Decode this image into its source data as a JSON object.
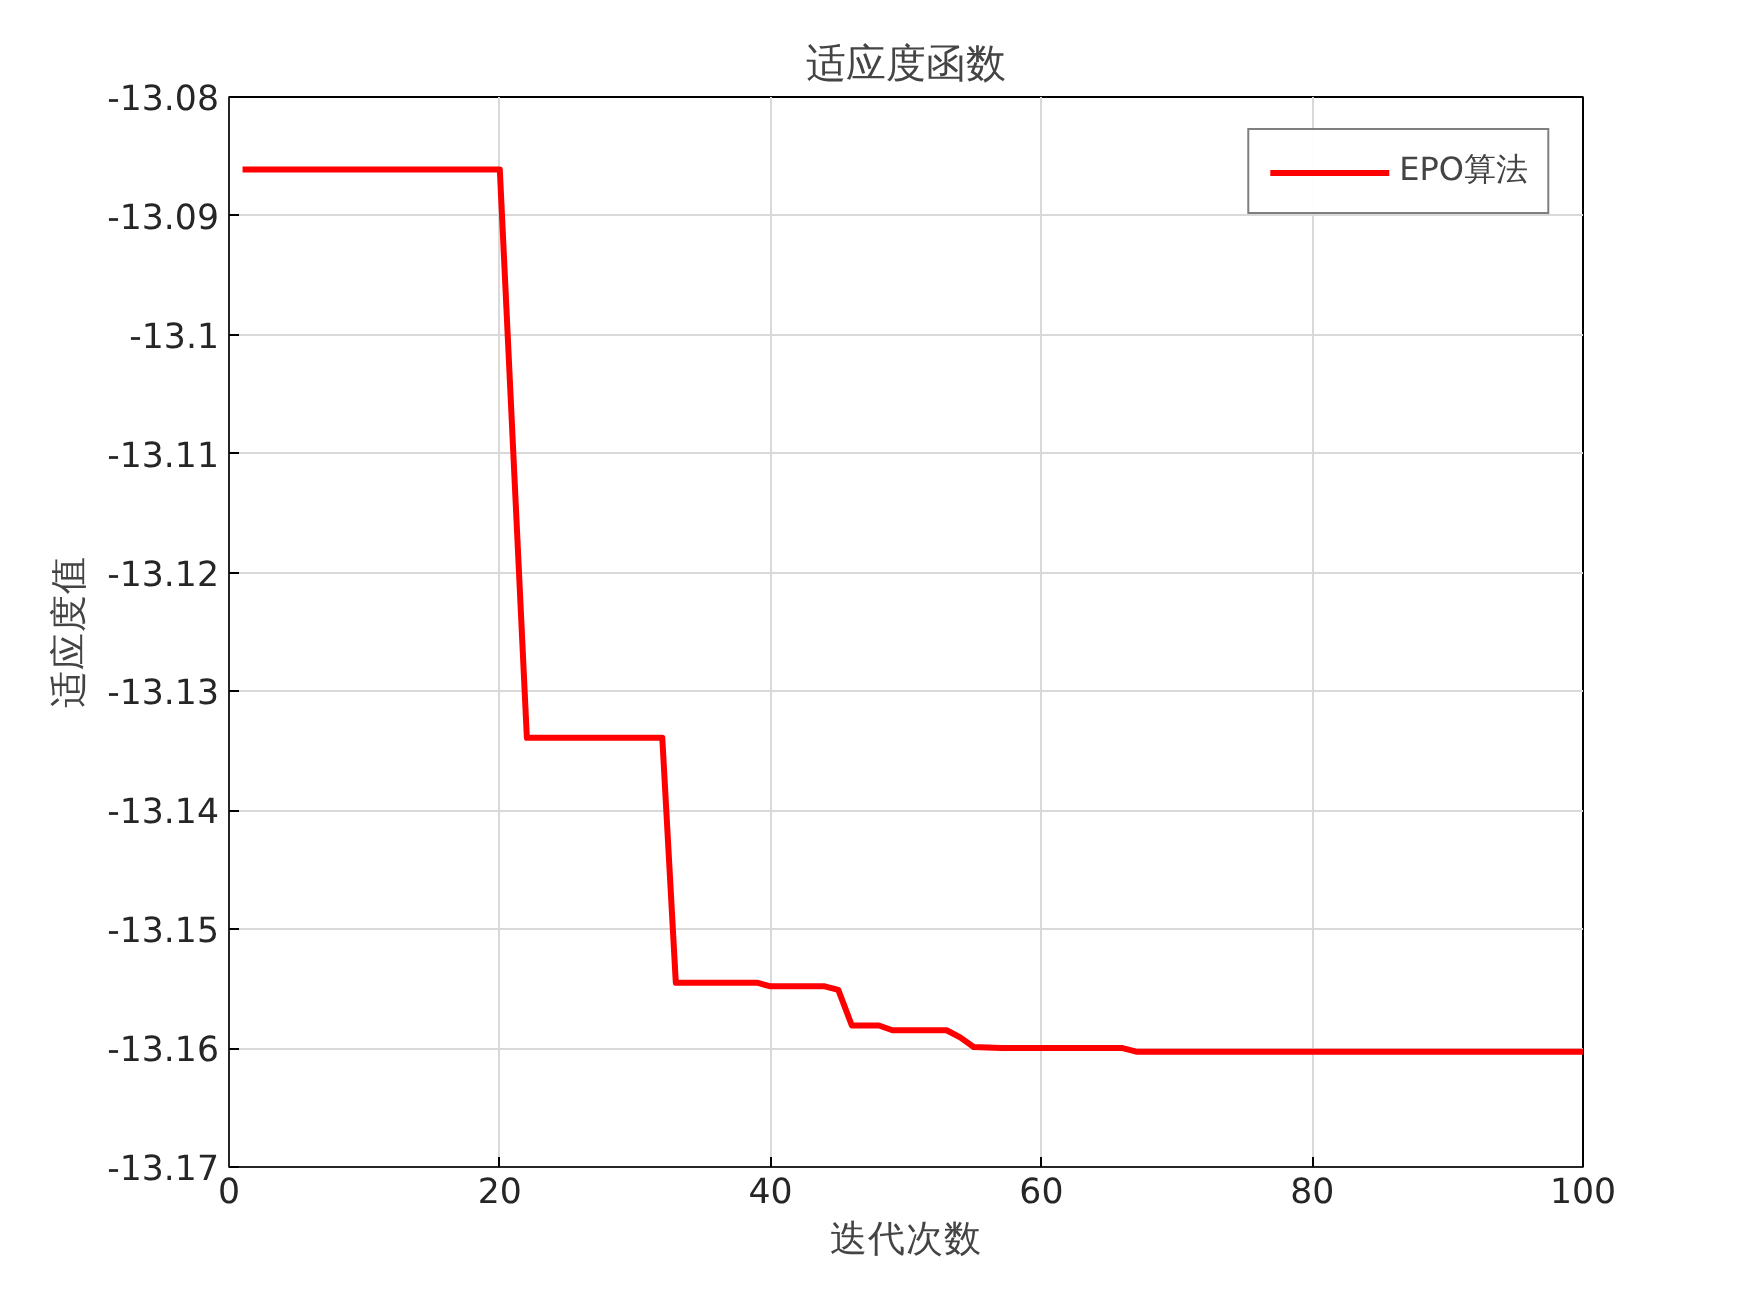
{
  "chart_data": {
    "type": "line",
    "title": "适应度函数",
    "xlabel": "迭代次数",
    "ylabel": "适应度值",
    "x": [
      1,
      20,
      22,
      32,
      33,
      39,
      40,
      44,
      45,
      46,
      48,
      49,
      53,
      54,
      55,
      57,
      66,
      67,
      100
    ],
    "series": [
      {
        "name": "EPO算法",
        "color": "#ff0000",
        "values": [
          -13.0861,
          -13.0861,
          -13.1339,
          -13.1339,
          -13.1545,
          -13.1545,
          -13.1548,
          -13.1548,
          -13.1551,
          -13.1581,
          -13.1581,
          -13.1585,
          -13.1585,
          -13.1591,
          -13.1599,
          -13.16,
          -13.16,
          -13.1603,
          -13.1603
        ]
      }
    ],
    "xlim": [
      0,
      100
    ],
    "xticks": [
      0,
      20,
      40,
      60,
      80,
      100
    ],
    "ylim": [
      -13.17,
      -13.08
    ],
    "yticks": [
      -13.17,
      -13.16,
      -13.15,
      -13.14,
      -13.13,
      -13.12,
      -13.11,
      -13.1,
      -13.09,
      -13.08
    ],
    "grid": true,
    "legend": "top right",
    "marker": "none",
    "line_style": "solid"
  }
}
